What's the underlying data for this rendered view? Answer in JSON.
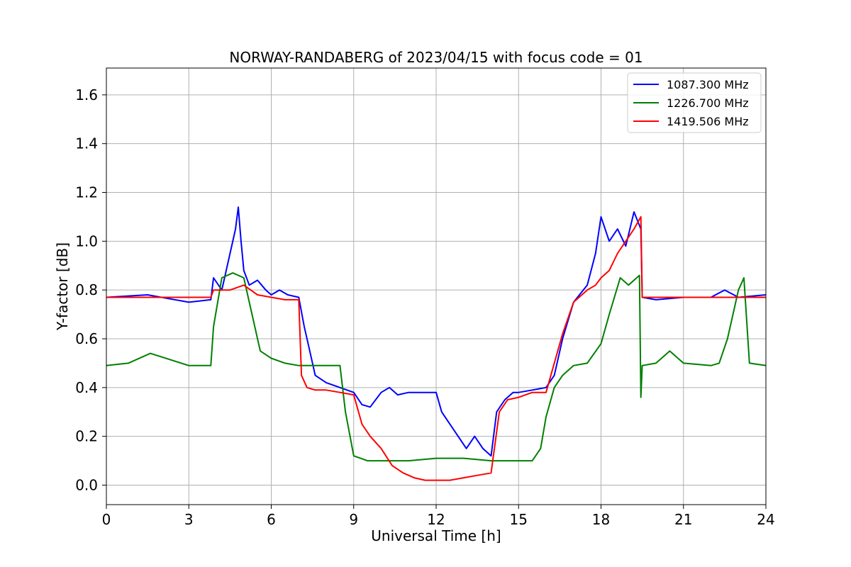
{
  "chart_data": {
    "type": "line",
    "title": "NORWAY-RANDABERG of 2023/04/15 with focus code = 01",
    "xlabel": "Universal Time [h]",
    "ylabel": "Y-factor [dB]",
    "xlim": [
      0,
      24
    ],
    "ylim": [
      -0.08,
      1.71
    ],
    "xticks": [
      0,
      3,
      6,
      9,
      12,
      15,
      18,
      21,
      24
    ],
    "xtick_labels": [
      "0",
      "3",
      "6",
      "9",
      "12",
      "15",
      "18",
      "21",
      "24"
    ],
    "yticks": [
      0.0,
      0.2,
      0.4,
      0.6,
      0.8,
      1.0,
      1.2,
      1.4,
      1.6
    ],
    "ytick_labels": [
      "0.0",
      "0.2",
      "0.4",
      "0.6",
      "0.8",
      "1.0",
      "1.2",
      "1.4",
      "1.6"
    ],
    "grid": true,
    "legend_position": "top-right",
    "series": [
      {
        "name": "1087.300 MHz",
        "color": "#0000ff",
        "x": [
          0,
          1.5,
          3.0,
          3.8,
          3.9,
          4.2,
          4.5,
          4.7,
          4.8,
          4.9,
          5.0,
          5.2,
          5.5,
          5.8,
          6.0,
          6.3,
          6.6,
          7.0,
          7.2,
          7.4,
          7.6,
          8.0,
          8.5,
          9.0,
          9.3,
          9.6,
          10.0,
          10.3,
          10.6,
          11.0,
          11.5,
          12.0,
          12.2,
          12.5,
          12.8,
          13.1,
          13.4,
          13.7,
          14.0,
          14.2,
          14.5,
          14.8,
          15.0,
          15.5,
          16.0,
          16.3,
          16.6,
          17.0,
          17.5,
          17.8,
          18.0,
          18.3,
          18.6,
          18.9,
          19.2,
          19.45,
          19.5,
          20.0,
          21.0,
          22.0,
          22.5,
          23.0,
          24.0
        ],
        "values": [
          0.77,
          0.78,
          0.75,
          0.76,
          0.85,
          0.8,
          0.95,
          1.05,
          1.14,
          1.0,
          0.88,
          0.82,
          0.84,
          0.8,
          0.78,
          0.8,
          0.78,
          0.77,
          0.65,
          0.55,
          0.45,
          0.42,
          0.4,
          0.38,
          0.33,
          0.32,
          0.38,
          0.4,
          0.37,
          0.38,
          0.38,
          0.38,
          0.3,
          0.25,
          0.2,
          0.15,
          0.2,
          0.15,
          0.12,
          0.3,
          0.35,
          0.38,
          0.38,
          0.39,
          0.4,
          0.45,
          0.6,
          0.75,
          0.82,
          0.95,
          1.1,
          1.0,
          1.05,
          0.98,
          1.12,
          1.05,
          0.77,
          0.76,
          0.77,
          0.77,
          0.8,
          0.77,
          0.78
        ]
      },
      {
        "name": "1226.700 MHz",
        "color": "#008000",
        "x": [
          0,
          0.8,
          1.6,
          3.0,
          3.8,
          3.9,
          4.2,
          4.6,
          5.0,
          5.3,
          5.6,
          6.0,
          6.5,
          7.0,
          7.5,
          8.0,
          8.5,
          8.7,
          9.0,
          9.5,
          10.0,
          11.0,
          12.0,
          13.0,
          14.0,
          14.3,
          14.6,
          15.0,
          15.5,
          15.8,
          16.0,
          16.3,
          16.6,
          17.0,
          17.5,
          18.0,
          18.3,
          18.7,
          19.0,
          19.4,
          19.45,
          19.5,
          20.0,
          20.5,
          21.0,
          22.0,
          22.3,
          22.6,
          23.0,
          23.2,
          23.4,
          24.0
        ],
        "values": [
          0.49,
          0.5,
          0.54,
          0.49,
          0.49,
          0.65,
          0.85,
          0.87,
          0.85,
          0.7,
          0.55,
          0.52,
          0.5,
          0.49,
          0.49,
          0.49,
          0.49,
          0.3,
          0.12,
          0.1,
          0.1,
          0.1,
          0.11,
          0.11,
          0.1,
          0.1,
          0.1,
          0.1,
          0.1,
          0.15,
          0.28,
          0.4,
          0.45,
          0.49,
          0.5,
          0.58,
          0.7,
          0.85,
          0.82,
          0.86,
          0.36,
          0.49,
          0.5,
          0.55,
          0.5,
          0.49,
          0.5,
          0.6,
          0.8,
          0.85,
          0.5,
          0.49
        ]
      },
      {
        "name": "1419.506 MHz",
        "color": "#ff0000",
        "x": [
          0,
          3.0,
          3.8,
          3.9,
          4.5,
          5.0,
          5.5,
          6.0,
          6.5,
          7.0,
          7.1,
          7.3,
          7.6,
          8.0,
          8.5,
          9.0,
          9.3,
          9.6,
          10.0,
          10.4,
          10.8,
          11.2,
          11.6,
          12.0,
          12.5,
          13.0,
          13.5,
          14.0,
          14.3,
          14.6,
          15.0,
          15.5,
          16.0,
          16.3,
          16.6,
          17.0,
          17.5,
          17.8,
          18.0,
          18.3,
          18.6,
          18.9,
          19.2,
          19.45,
          19.5,
          20.0,
          21.0,
          22.0,
          23.0,
          24.0
        ],
        "values": [
          0.77,
          0.77,
          0.77,
          0.8,
          0.8,
          0.82,
          0.78,
          0.77,
          0.76,
          0.76,
          0.45,
          0.4,
          0.39,
          0.39,
          0.38,
          0.37,
          0.25,
          0.2,
          0.15,
          0.08,
          0.05,
          0.03,
          0.02,
          0.02,
          0.02,
          0.03,
          0.04,
          0.05,
          0.3,
          0.35,
          0.36,
          0.38,
          0.38,
          0.5,
          0.62,
          0.75,
          0.8,
          0.82,
          0.85,
          0.88,
          0.95,
          1.0,
          1.05,
          1.1,
          0.77,
          0.77,
          0.77,
          0.77,
          0.77,
          0.77
        ]
      }
    ]
  }
}
